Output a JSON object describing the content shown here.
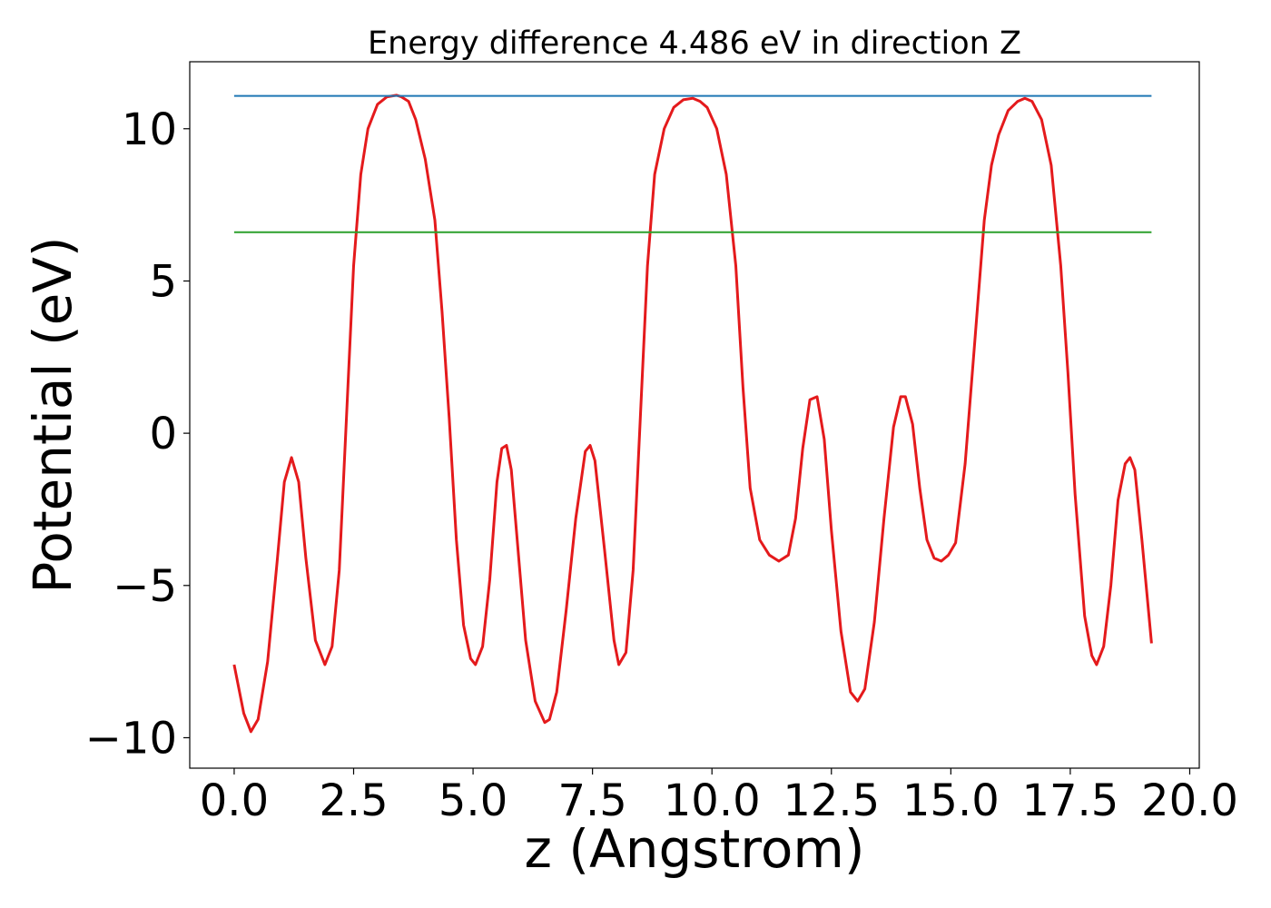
{
  "chart_data": {
    "type": "line",
    "title": "Energy difference 4.486 eV in direction Z",
    "xlabel": "z (Angstrom)",
    "ylabel": "Potential (eV)",
    "xlim": [
      -0.93,
      20.2
    ],
    "ylim": [
      -11.0,
      12.2
    ],
    "xticks": [
      0.0,
      2.5,
      5.0,
      7.5,
      10.0,
      12.5,
      15.0,
      17.5,
      20.0
    ],
    "xtick_labels": [
      "0.0",
      "2.5",
      "5.0",
      "7.5",
      "10.0",
      "12.5",
      "15.0",
      "17.5",
      "20.0"
    ],
    "yticks": [
      -10,
      -5,
      0,
      5,
      10
    ],
    "ytick_labels": [
      "−10",
      "−5",
      "0",
      "5",
      "10"
    ],
    "grid": false,
    "legend": "none",
    "colors": {
      "potential": "#e41a1c",
      "upper_level": "#1f77b4",
      "lower_level": "#2ca02c"
    },
    "series": [
      {
        "key": "potential",
        "x": [
          0.0,
          0.2,
          0.35,
          0.5,
          0.7,
          0.9,
          1.05,
          1.2,
          1.35,
          1.5,
          1.7,
          1.9,
          2.05,
          2.2,
          2.35,
          2.5,
          2.65,
          2.8,
          3.0,
          3.2,
          3.4,
          3.5,
          3.65,
          3.8,
          4.0,
          4.2,
          4.35,
          4.5,
          4.65,
          4.8,
          4.95,
          5.05,
          5.2,
          5.35,
          5.5,
          5.6,
          5.7,
          5.8,
          5.95,
          6.1,
          6.3,
          6.5,
          6.6,
          6.75,
          6.95,
          7.15,
          7.35,
          7.45,
          7.55,
          7.75,
          7.95,
          8.05,
          8.2,
          8.35,
          8.5,
          8.65,
          8.8,
          9.0,
          9.2,
          9.4,
          9.6,
          9.75,
          9.9,
          10.1,
          10.3,
          10.5,
          10.65,
          10.8,
          11.0,
          11.2,
          11.4,
          11.6,
          11.75,
          11.9,
          12.05,
          12.2,
          12.35,
          12.5,
          12.7,
          12.9,
          13.05,
          13.2,
          13.4,
          13.6,
          13.8,
          13.95,
          14.05,
          14.2,
          14.35,
          14.5,
          14.65,
          14.8,
          14.95,
          15.1,
          15.3,
          15.5,
          15.7,
          15.85,
          16.0,
          16.2,
          16.4,
          16.55,
          16.7,
          16.9,
          17.1,
          17.3,
          17.45,
          17.6,
          17.8,
          17.95,
          18.05,
          18.2,
          18.35,
          18.5,
          18.65,
          18.75,
          18.85,
          19.0,
          19.2
        ],
        "values": [
          -7.6,
          -9.2,
          -9.8,
          -9.4,
          -7.5,
          -4.2,
          -1.6,
          -0.8,
          -1.6,
          -4.1,
          -6.8,
          -7.6,
          -7.0,
          -4.5,
          0.5,
          5.5,
          8.5,
          10.0,
          10.8,
          11.05,
          11.1,
          11.05,
          10.9,
          10.3,
          9.0,
          7.0,
          4.0,
          0.5,
          -3.5,
          -6.3,
          -7.4,
          -7.6,
          -7.0,
          -4.8,
          -1.6,
          -0.5,
          -0.4,
          -1.2,
          -4.0,
          -6.8,
          -8.8,
          -9.5,
          -9.4,
          -8.5,
          -5.8,
          -2.8,
          -0.6,
          -0.4,
          -0.9,
          -3.8,
          -6.8,
          -7.6,
          -7.2,
          -4.5,
          0.5,
          5.5,
          8.5,
          10.0,
          10.7,
          10.95,
          11.0,
          10.9,
          10.7,
          10.0,
          8.5,
          5.5,
          1.5,
          -1.8,
          -3.5,
          -4.0,
          -4.2,
          -4.0,
          -2.8,
          -0.5,
          1.1,
          1.2,
          -0.2,
          -3.2,
          -6.5,
          -8.5,
          -8.8,
          -8.4,
          -6.2,
          -2.8,
          0.2,
          1.2,
          1.2,
          0.3,
          -1.8,
          -3.5,
          -4.1,
          -4.2,
          -4.0,
          -3.6,
          -1.0,
          3.0,
          7.0,
          8.8,
          9.8,
          10.6,
          10.9,
          11.0,
          10.9,
          10.3,
          8.8,
          5.5,
          2.0,
          -2.0,
          -6.0,
          -7.3,
          -7.6,
          -7.0,
          -5.0,
          -2.2,
          -1.0,
          -0.8,
          -1.2,
          -3.5,
          -6.9
        ]
      },
      {
        "key": "upper_level",
        "x": [
          0.0,
          19.2
        ],
        "values": [
          11.08,
          11.08
        ]
      },
      {
        "key": "lower_level",
        "x": [
          0.0,
          19.2
        ],
        "values": [
          6.6,
          6.6
        ]
      }
    ]
  }
}
